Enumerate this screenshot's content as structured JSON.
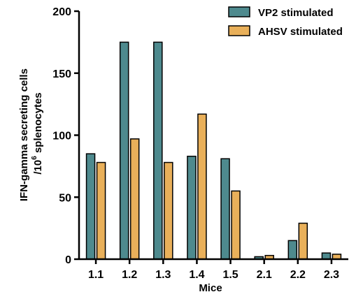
{
  "chart_data": {
    "type": "bar",
    "categories": [
      "1.1",
      "1.2",
      "1.3",
      "1.4",
      "1.5",
      "2.1",
      "2.2",
      "2.3"
    ],
    "series": [
      {
        "name": "VP2 stimulated",
        "color": "#4e8a8e",
        "values": [
          85,
          175,
          175,
          83,
          81,
          2,
          15,
          5
        ]
      },
      {
        "name": "AHSV stimulated",
        "color": "#e9b05a",
        "values": [
          78,
          97,
          78,
          117,
          55,
          3,
          29,
          4
        ]
      }
    ],
    "xlabel": "Mice",
    "ylabel_line1": "IFN-gamma secreting cells",
    "ylabel_line2_prefix": "/10",
    "ylabel_line2_sup": "6",
    "ylabel_line2_suffix": " splenocytes",
    "ylim": [
      0,
      200
    ],
    "yticks": [
      0,
      50,
      100,
      150,
      200
    ],
    "legend_position": "top-right",
    "grid": false
  }
}
